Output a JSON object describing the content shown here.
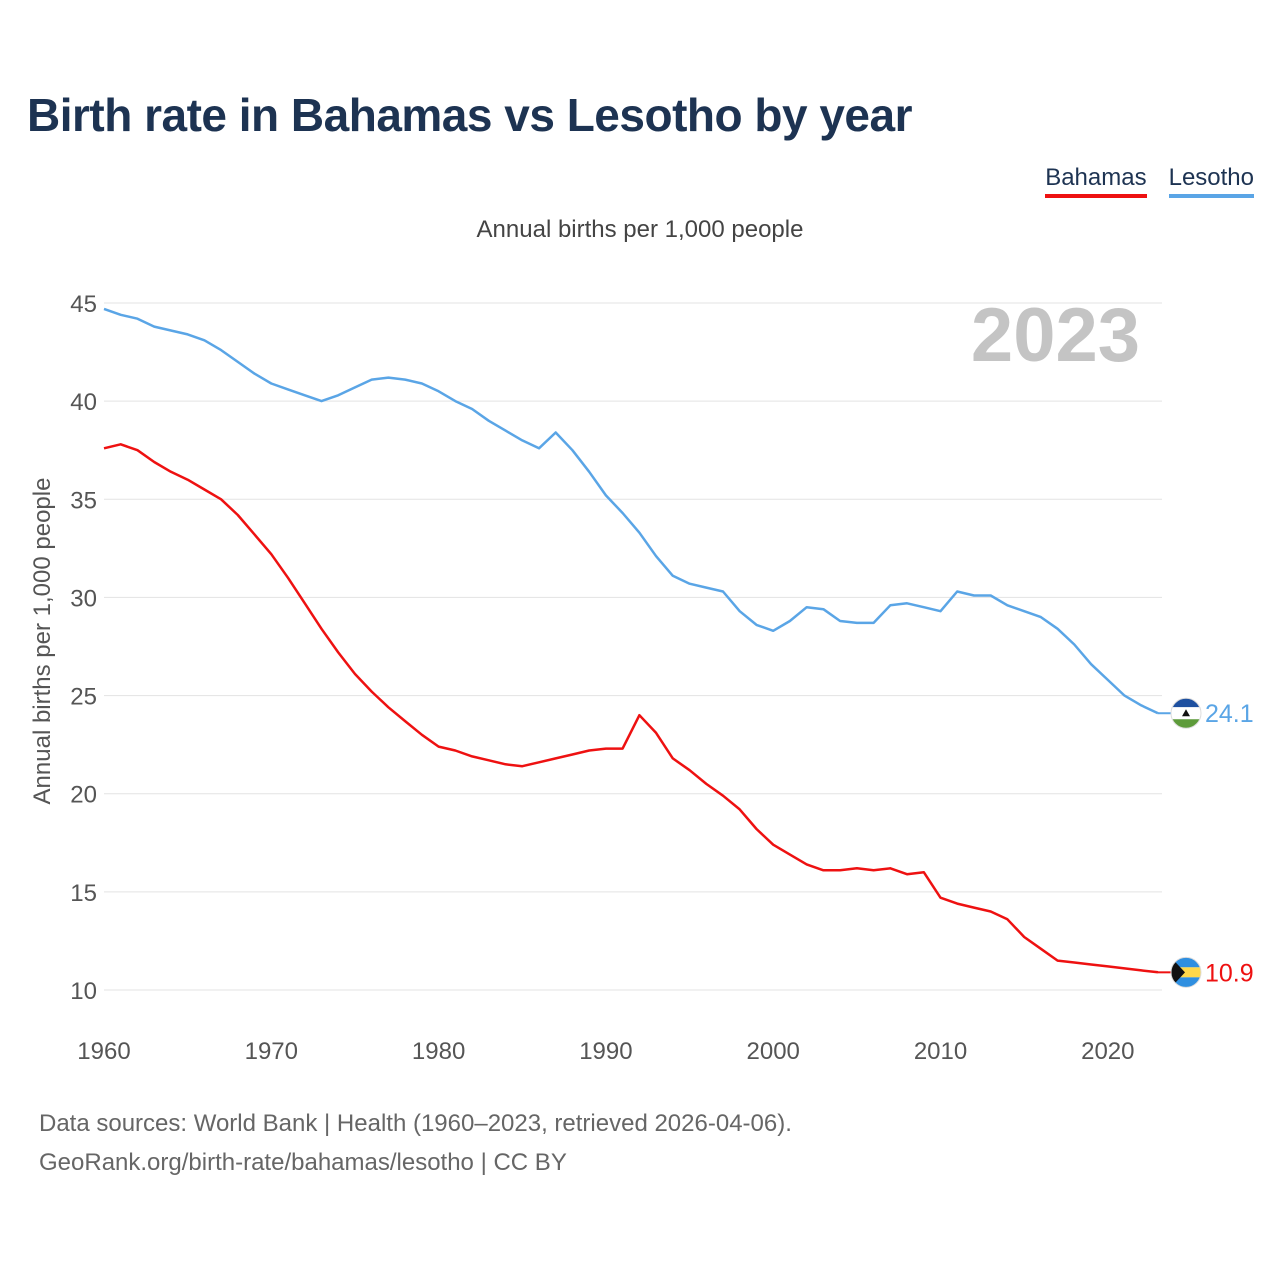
{
  "title": "Birth rate in Bahamas vs Lesotho by year",
  "subtitle": "Annual births per 1,000 people",
  "legend": [
    {
      "label": "Bahamas",
      "color": "#ee1111"
    },
    {
      "label": "Lesotho",
      "color": "#5aa5e6"
    }
  ],
  "footer": {
    "line1": "Data sources: World Bank | Health (1960–2023, retrieved 2026-04-06).",
    "line2": "GeoRank.org/birth-rate/bahamas/lesotho | CC BY"
  },
  "chart_data": {
    "type": "line",
    "title": "Birth rate in Bahamas vs Lesotho by year",
    "ylabel": "Annual births per 1,000 people",
    "xlabel": "",
    "year_shown": "2023",
    "xlim": [
      1960,
      2023
    ],
    "ylim": [
      10,
      45
    ],
    "x_ticks": [
      1960,
      1970,
      1980,
      1990,
      2000,
      2010,
      2020
    ],
    "y_ticks": [
      10,
      15,
      20,
      25,
      30,
      35,
      40,
      45
    ],
    "grid": true,
    "x": [
      1960,
      1961,
      1962,
      1963,
      1964,
      1965,
      1966,
      1967,
      1968,
      1969,
      1970,
      1971,
      1972,
      1973,
      1974,
      1975,
      1976,
      1977,
      1978,
      1979,
      1980,
      1981,
      1982,
      1983,
      1984,
      1985,
      1986,
      1987,
      1988,
      1989,
      1990,
      1991,
      1992,
      1993,
      1994,
      1995,
      1996,
      1997,
      1998,
      1999,
      2000,
      2001,
      2002,
      2003,
      2004,
      2005,
      2006,
      2007,
      2008,
      2009,
      2010,
      2011,
      2012,
      2013,
      2014,
      2015,
      2016,
      2017,
      2018,
      2019,
      2020,
      2021,
      2022,
      2023
    ],
    "series": [
      {
        "name": "Lesotho",
        "color": "#5aa5e6",
        "end_label": "24.1",
        "flag": "lesotho-flag",
        "values": [
          44.7,
          44.4,
          44.2,
          43.8,
          43.6,
          43.4,
          43.1,
          42.6,
          42.0,
          41.4,
          40.9,
          40.6,
          40.3,
          40.0,
          40.3,
          40.7,
          41.1,
          41.2,
          41.1,
          40.9,
          40.5,
          40.0,
          39.6,
          39.0,
          38.5,
          38.0,
          37.6,
          38.4,
          37.5,
          36.4,
          35.2,
          34.3,
          33.3,
          32.1,
          31.1,
          30.7,
          30.5,
          30.3,
          29.3,
          28.6,
          28.3,
          28.8,
          29.5,
          29.4,
          28.8,
          28.7,
          28.7,
          29.6,
          29.7,
          29.5,
          29.3,
          30.3,
          30.1,
          30.1,
          29.6,
          29.3,
          29.0,
          28.4,
          27.6,
          26.6,
          25.8,
          25.0,
          24.5,
          24.1
        ]
      },
      {
        "name": "Bahamas",
        "color": "#ee1111",
        "end_label": "10.9",
        "flag": "bahamas-flag",
        "values": [
          37.6,
          37.8,
          37.5,
          36.9,
          36.4,
          36.0,
          35.5,
          35.0,
          34.2,
          33.2,
          32.2,
          31.0,
          29.7,
          28.4,
          27.2,
          26.1,
          25.2,
          24.4,
          23.7,
          23.0,
          22.4,
          22.2,
          21.9,
          21.7,
          21.5,
          21.4,
          21.6,
          21.8,
          22.0,
          22.2,
          22.3,
          22.3,
          24.0,
          23.1,
          21.8,
          21.2,
          20.5,
          19.9,
          19.2,
          18.2,
          17.4,
          16.9,
          16.4,
          16.1,
          16.1,
          16.2,
          16.1,
          16.2,
          15.9,
          16.0,
          14.7,
          14.4,
          14.2,
          14.0,
          13.6,
          12.7,
          12.1,
          11.5,
          11.4,
          11.3,
          11.2,
          11.1,
          11.0,
          10.9
        ]
      }
    ]
  }
}
